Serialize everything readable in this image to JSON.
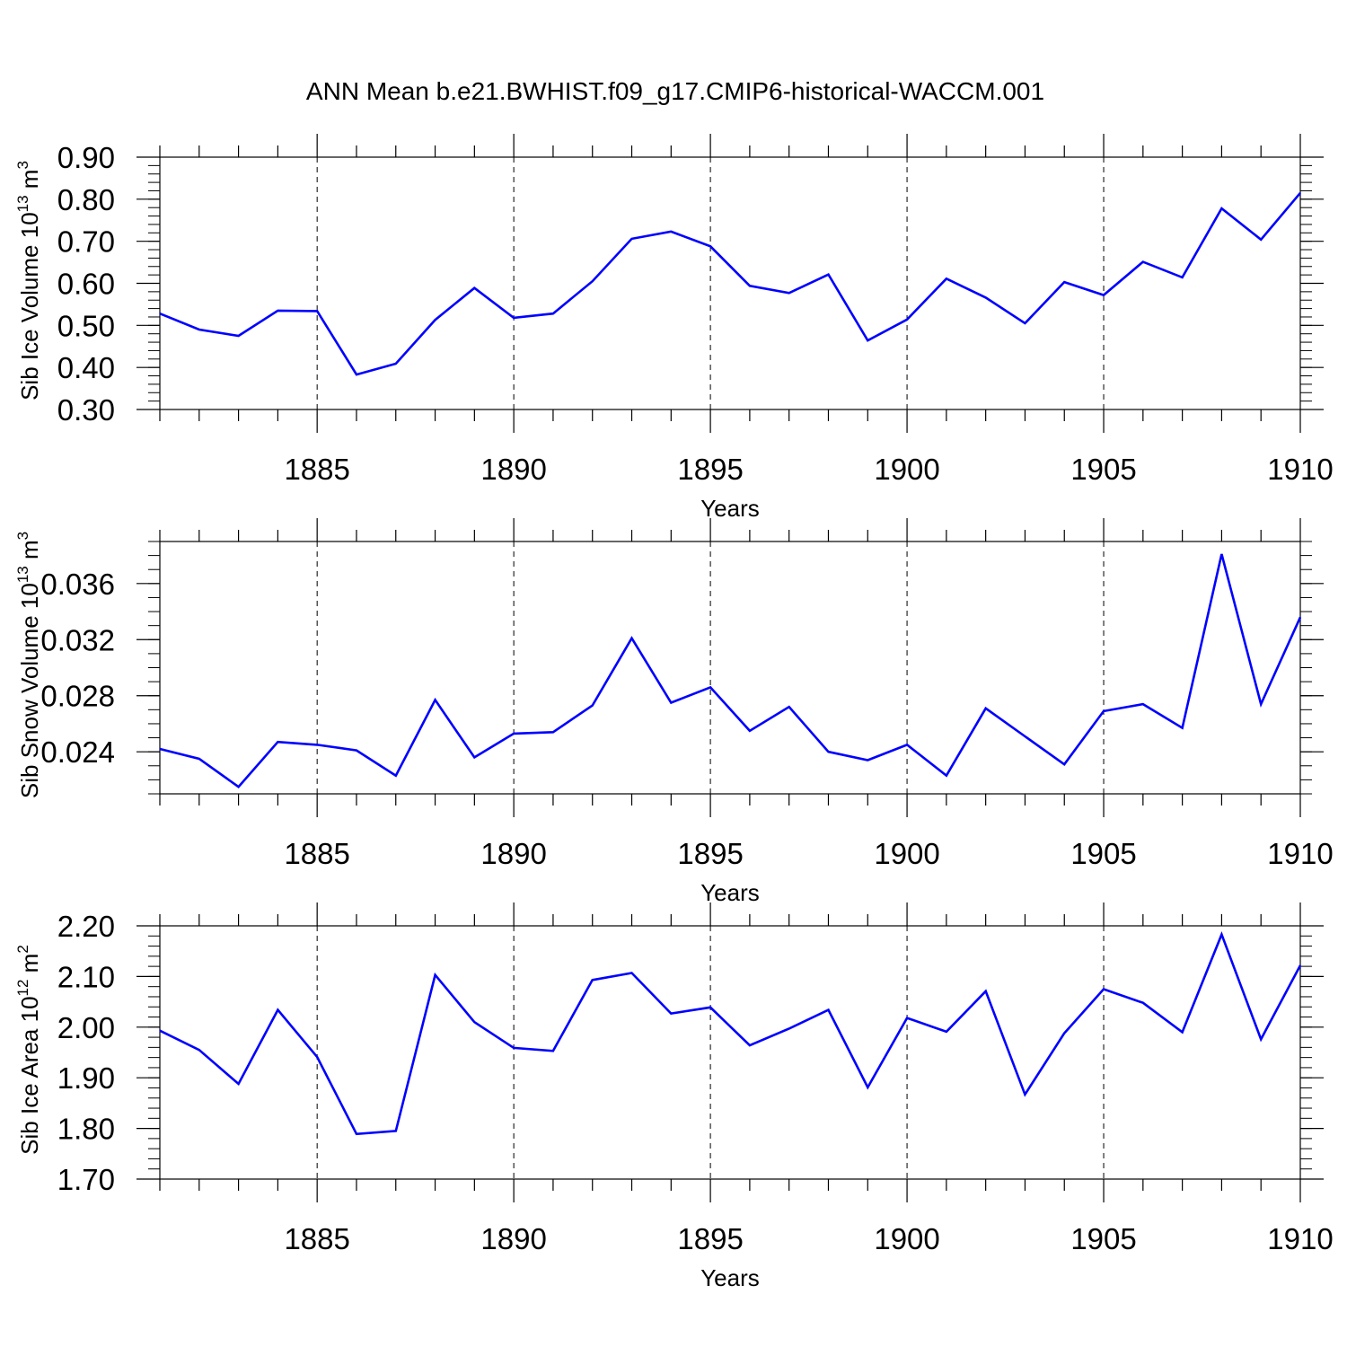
{
  "title": "ANN Mean b.e21.BWHIST.f09_g17.CMIP6-historical-WACCM.001",
  "colors": {
    "line": "#0000ff",
    "axis": "#000000",
    "grid": "#000000"
  },
  "chart_data": [
    {
      "type": "line",
      "ylabel": "Sib Ice Volume 10",
      "ylabel_exp": "13",
      "ylabel_unit": " m",
      "ylabel_unit_exp": "3",
      "xlabel": "Years",
      "xlim": [
        1881,
        1910
      ],
      "ylim": [
        0.3,
        0.9
      ],
      "grid": "vertical dashed at major x ticks",
      "xticks": [
        1885,
        1890,
        1895,
        1900,
        1905,
        1910
      ],
      "yticks": [
        {
          "v": 0.3,
          "t": "0.30"
        },
        {
          "v": 0.4,
          "t": "0.40"
        },
        {
          "v": 0.5,
          "t": "0.50"
        },
        {
          "v": 0.6,
          "t": "0.60"
        },
        {
          "v": 0.7,
          "t": "0.70"
        },
        {
          "v": 0.8,
          "t": "0.80"
        },
        {
          "v": 0.9,
          "t": "0.90"
        }
      ],
      "yminor_step": 0.02,
      "x": [
        1881,
        1882,
        1883,
        1884,
        1885,
        1886,
        1887,
        1888,
        1889,
        1890,
        1891,
        1892,
        1893,
        1894,
        1895,
        1896,
        1897,
        1898,
        1899,
        1900,
        1901,
        1902,
        1903,
        1904,
        1905,
        1906,
        1907,
        1908,
        1909,
        1910
      ],
      "values": [
        0.528,
        0.49,
        0.475,
        0.535,
        0.534,
        0.383,
        0.409,
        0.513,
        0.589,
        0.518,
        0.528,
        0.605,
        0.706,
        0.723,
        0.688,
        0.594,
        0.577,
        0.621,
        0.464,
        0.514,
        0.611,
        0.566,
        0.505,
        0.603,
        0.572,
        0.651,
        0.614,
        0.778,
        0.704,
        0.815
      ]
    },
    {
      "type": "line",
      "ylabel": "Sib Snow Volume 10",
      "ylabel_exp": "13",
      "ylabel_unit": " m",
      "ylabel_unit_exp": "3",
      "xlabel": "Years",
      "xlim": [
        1881,
        1910
      ],
      "ylim": [
        0.021,
        0.039
      ],
      "grid": "vertical dashed at major x ticks",
      "xticks": [
        1885,
        1890,
        1895,
        1900,
        1905,
        1910
      ],
      "yticks": [
        {
          "v": 0.024,
          "t": "0.024"
        },
        {
          "v": 0.028,
          "t": "0.028"
        },
        {
          "v": 0.032,
          "t": "0.032"
        },
        {
          "v": 0.036,
          "t": "0.036"
        }
      ],
      "yminor_step": 0.001,
      "x": [
        1881,
        1882,
        1883,
        1884,
        1885,
        1886,
        1887,
        1888,
        1889,
        1890,
        1891,
        1892,
        1893,
        1894,
        1895,
        1896,
        1897,
        1898,
        1899,
        1900,
        1901,
        1902,
        1903,
        1904,
        1905,
        1906,
        1907,
        1908,
        1909,
        1910
      ],
      "values": [
        0.0242,
        0.0235,
        0.0215,
        0.0247,
        0.0245,
        0.0241,
        0.0223,
        0.0277,
        0.0236,
        0.0253,
        0.0254,
        0.0273,
        0.0321,
        0.0275,
        0.0286,
        0.0255,
        0.0272,
        0.024,
        0.0234,
        0.0245,
        0.0223,
        0.0271,
        0.0251,
        0.0231,
        0.0269,
        0.0274,
        0.0257,
        0.0381,
        0.0274,
        0.0336
      ]
    },
    {
      "type": "line",
      "ylabel": "Sib Ice Area 10",
      "ylabel_exp": "12",
      "ylabel_unit": " m",
      "ylabel_unit_exp": "2",
      "xlabel": "Years",
      "xlim": [
        1881,
        1910
      ],
      "ylim": [
        1.7,
        2.2
      ],
      "grid": "vertical dashed at major x ticks",
      "xticks": [
        1885,
        1890,
        1895,
        1900,
        1905,
        1910
      ],
      "yticks": [
        {
          "v": 1.7,
          "t": "1.70"
        },
        {
          "v": 1.8,
          "t": "1.80"
        },
        {
          "v": 1.9,
          "t": "1.90"
        },
        {
          "v": 2.0,
          "t": "2.00"
        },
        {
          "v": 2.1,
          "t": "2.10"
        },
        {
          "v": 2.2,
          "t": "2.20"
        }
      ],
      "yminor_step": 0.02,
      "x": [
        1881,
        1882,
        1883,
        1884,
        1885,
        1886,
        1887,
        1888,
        1889,
        1890,
        1891,
        1892,
        1893,
        1894,
        1895,
        1896,
        1897,
        1898,
        1899,
        1900,
        1901,
        1902,
        1903,
        1904,
        1905,
        1906,
        1907,
        1908,
        1909,
        1910
      ],
      "values": [
        1.993,
        1.955,
        1.888,
        2.034,
        1.941,
        1.789,
        1.795,
        2.103,
        2.01,
        1.959,
        1.953,
        2.093,
        2.107,
        2.027,
        2.039,
        1.964,
        1.997,
        2.034,
        1.881,
        2.018,
        1.991,
        2.071,
        1.867,
        1.988,
        2.075,
        2.048,
        1.99,
        2.183,
        1.976,
        2.122
      ]
    }
  ]
}
